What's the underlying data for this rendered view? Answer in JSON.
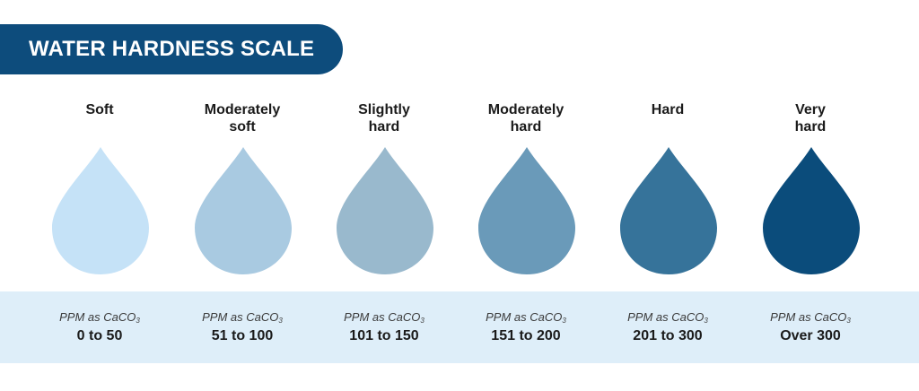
{
  "title": "WATER HARDNESS SCALE",
  "unit": {
    "prefix": "PPM as CaCO",
    "subscript": "3"
  },
  "levels": [
    {
      "label_line1": "Soft",
      "label_line2": "",
      "range": "0 to 50",
      "color": "#c5e2f7"
    },
    {
      "label_line1": "Moderately",
      "label_line2": "soft",
      "range": "51 to 100",
      "color": "#a9cae1"
    },
    {
      "label_line1": "Slightly",
      "label_line2": "hard",
      "range": "101 to 150",
      "color": "#99b9cd"
    },
    {
      "label_line1": "Moderately",
      "label_line2": "hard",
      "range": "151 to 200",
      "color": "#6a9ab9"
    },
    {
      "label_line1": "Hard",
      "label_line2": "",
      "range": "201 to 300",
      "color": "#36739a"
    },
    {
      "label_line1": "Very",
      "label_line2": "hard",
      "range": "Over 300",
      "color": "#0b4c7b"
    }
  ]
}
